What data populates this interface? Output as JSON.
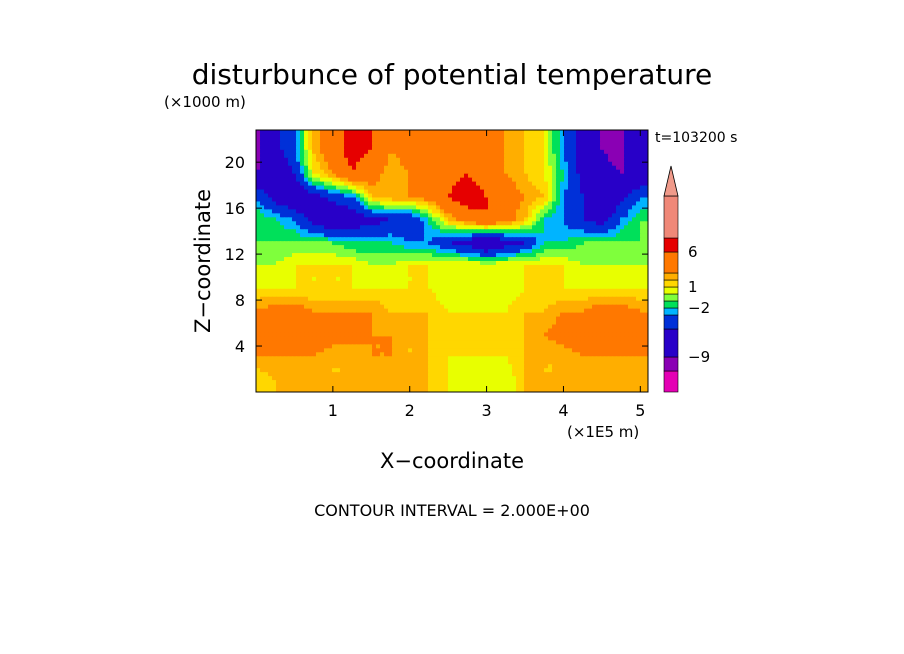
{
  "chart_data": {
    "type": "heatmap",
    "title": "disturbunce of potential temperature",
    "time_label": "t=103200 s",
    "footer": "CONTOUR INTERVAL = 2.000E+00",
    "x_axis": {
      "label": "X−coordinate",
      "unit_label": "(×1E5 m)",
      "ticks": [
        1,
        2,
        3,
        4,
        5
      ],
      "tick_labels": [
        "1",
        "2",
        "3",
        "4",
        "5"
      ],
      "range": [
        0,
        5.1
      ]
    },
    "y_axis": {
      "label": "Z−coordinate",
      "unit_label": "(×1000 m)",
      "ticks": [
        4,
        8,
        12,
        16,
        20
      ],
      "tick_labels": [
        "4",
        "8",
        "12",
        "16",
        "20"
      ],
      "range": [
        0,
        22.8
      ]
    },
    "colorbar": {
      "labels": [
        "6",
        "1",
        "−2",
        "−9"
      ],
      "label_values": [
        6,
        1,
        -2,
        -9
      ],
      "levels": [
        -14,
        -11,
        -9,
        -5,
        -3,
        -2,
        -1,
        0,
        1,
        2,
        3,
        6,
        8,
        14
      ],
      "colors": [
        "#e400b4",
        "#8a00b4",
        "#2800c8",
        "#0030d8",
        "#00b4ff",
        "#00e05a",
        "#7fff3c",
        "#e8ff00",
        "#ffd700",
        "#ffae00",
        "#ff7800",
        "#e60000",
        "#f08878"
      ],
      "extend_top_color": "#f09a8a"
    },
    "field": {
      "x": [
        0,
        0.25,
        0.5,
        0.75,
        1.0,
        1.25,
        1.5,
        1.75,
        2.0,
        2.25,
        2.5,
        2.75,
        3.0,
        3.25,
        3.5,
        3.75,
        4.0,
        4.25,
        4.5,
        4.75,
        5.0
      ],
      "z": [
        1,
        3,
        5,
        7,
        9,
        11,
        13,
        15,
        17,
        19,
        21
      ],
      "values": [
        [
          1,
          2,
          2,
          2,
          2,
          2,
          2,
          2,
          2,
          2,
          1,
          0,
          0,
          0,
          2,
          2,
          2,
          2,
          2,
          2,
          2
        ],
        [
          3,
          3,
          3,
          3,
          2,
          2,
          3,
          3,
          2,
          2,
          1,
          1,
          1,
          1,
          2,
          2,
          2,
          3,
          3,
          3,
          3
        ],
        [
          4,
          6,
          5,
          4,
          4,
          4,
          3,
          3,
          2,
          2,
          2,
          2,
          2,
          2,
          2,
          3,
          4,
          4,
          4,
          5,
          4
        ],
        [
          3,
          4,
          4,
          3,
          3,
          3,
          3,
          2,
          2,
          2,
          1,
          1,
          1,
          1,
          2,
          2,
          3,
          3,
          4,
          4,
          3
        ],
        [
          1,
          1,
          1,
          1,
          1,
          1,
          1,
          1,
          1,
          1,
          0,
          0,
          0,
          0,
          1,
          1,
          1,
          1,
          1,
          1,
          1
        ],
        [
          0,
          0,
          1,
          1,
          1,
          1,
          0,
          0,
          1,
          1,
          1,
          1,
          1,
          1,
          1,
          1,
          1,
          0,
          0,
          0,
          0
        ],
        [
          -1,
          -1,
          -1,
          -1,
          -1,
          -2,
          -2,
          -2,
          -3,
          -3,
          -5,
          -6,
          -9,
          -6,
          -5,
          -2,
          -2,
          -1,
          -1,
          -1,
          -1
        ],
        [
          -1,
          -2,
          -3,
          -6,
          -8,
          -7,
          -6,
          -5,
          -5,
          -2,
          2,
          4,
          6,
          4,
          2,
          -2,
          -3,
          -5,
          -6,
          -3,
          -1
        ],
        [
          -3,
          -6,
          -8,
          -6,
          -4,
          -3,
          2,
          3,
          3,
          4,
          6,
          8,
          6,
          4,
          3,
          2,
          -3,
          -5,
          -8,
          -6,
          -3
        ],
        [
          -9,
          -8,
          -5,
          1,
          3,
          6,
          4,
          2,
          3,
          4,
          5,
          6,
          4,
          3,
          2,
          1,
          -2,
          -6,
          -8,
          -9,
          -8
        ],
        [
          -10,
          -6,
          -3,
          2,
          5,
          7,
          6,
          3,
          4,
          6,
          5,
          4,
          3,
          3,
          2,
          1,
          -3,
          -6,
          -9,
          -10,
          -6
        ]
      ]
    }
  }
}
